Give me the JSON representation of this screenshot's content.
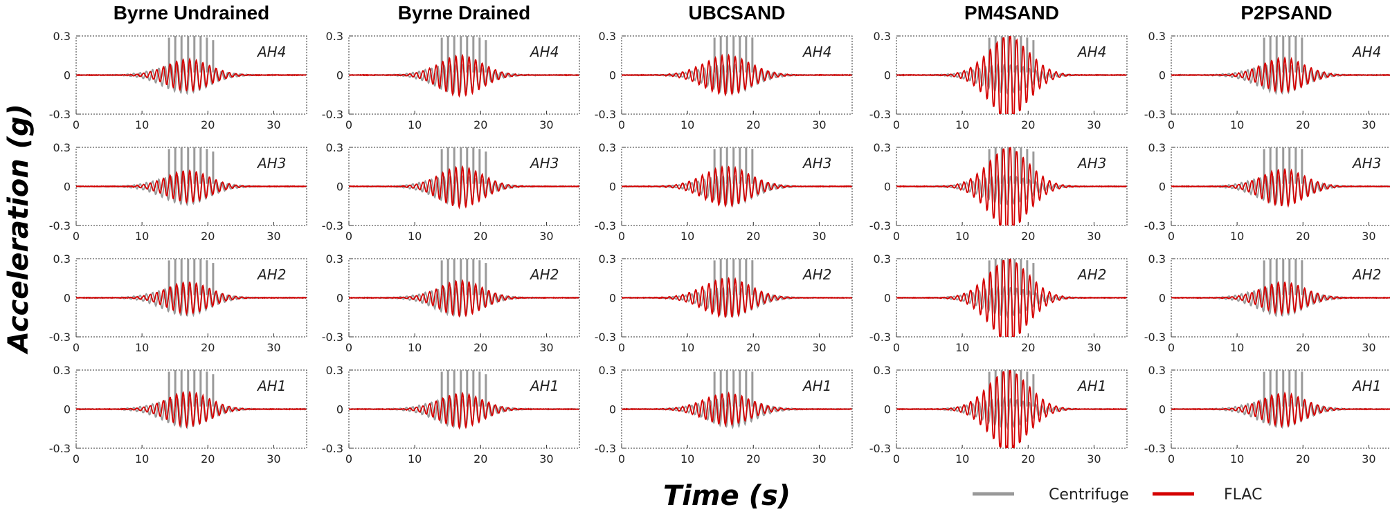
{
  "chart_data": {
    "type": "line",
    "ylabel": "Acceleration (g)",
    "xlabel": "Time (s)",
    "xlim": [
      0,
      35
    ],
    "ylim": [
      -0.3,
      0.3
    ],
    "xticks": [
      "0",
      "10",
      "20",
      "30"
    ],
    "yticks": [
      "0.3",
      "0",
      "-0.3"
    ],
    "grid": false,
    "legend": {
      "placement": "bottom-right",
      "entries": [
        {
          "name": "Centrifuge",
          "color": "#999999"
        },
        {
          "name": "FLAC",
          "color": "#d40000"
        }
      ]
    },
    "columns": [
      "Byrne Undrained",
      "Byrne Drained",
      "UBCSAND",
      "PM4SAND",
      "P2PSAND"
    ],
    "rows": [
      "AH4",
      "AH3",
      "AH2",
      "AH1"
    ],
    "series_note": "Each panel overlays Centrifuge (gray) and FLAC (red) acceleration time histories; peaks approximate.",
    "peaks": {
      "centrifuge": [
        [
          0.3,
          0.3,
          0.3,
          0.3
        ],
        [
          0.3,
          0.3,
          0.3,
          0.3
        ],
        [
          0.3,
          0.3,
          0.3,
          0.3
        ],
        [
          0.3,
          0.3,
          0.3,
          0.3
        ],
        [
          0.3,
          0.3,
          0.3,
          0.3
        ]
      ],
      "flac": [
        [
          0.12,
          0.12,
          0.12,
          0.13
        ],
        [
          0.15,
          0.15,
          0.13,
          0.12
        ],
        [
          0.15,
          0.15,
          0.15,
          0.12
        ],
        [
          0.28,
          0.28,
          0.28,
          0.28
        ],
        [
          0.13,
          0.13,
          0.12,
          0.12
        ]
      ],
      "flac_neg": [
        [
          0.12,
          0.12,
          0.12,
          0.13
        ],
        [
          0.16,
          0.16,
          0.14,
          0.14
        ],
        [
          0.15,
          0.15,
          0.15,
          0.12
        ],
        [
          0.3,
          0.3,
          0.3,
          0.28
        ],
        [
          0.13,
          0.15,
          0.12,
          0.13
        ]
      ]
    }
  }
}
